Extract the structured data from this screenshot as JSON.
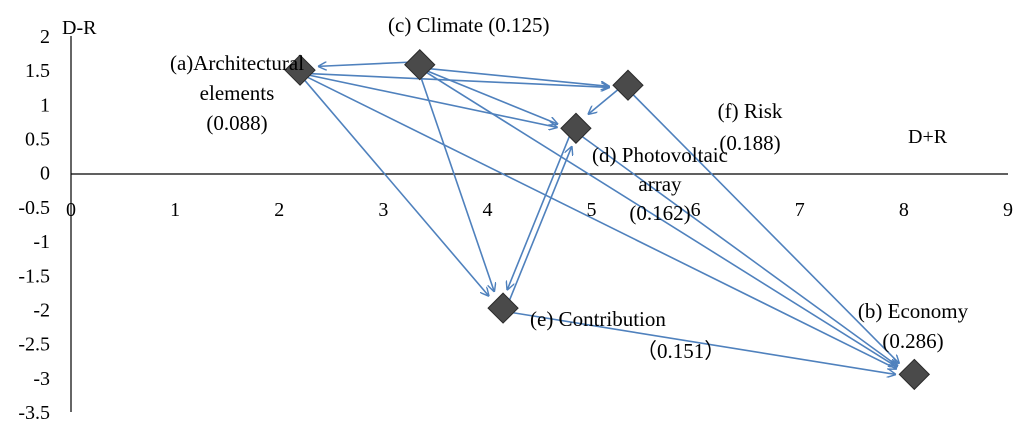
{
  "chart_data": {
    "type": "scatter",
    "xlabel": "D+R",
    "ylabel": "D-R",
    "xlim": [
      0,
      9
    ],
    "ylim": [
      -3.5,
      2
    ],
    "x_ticks": [
      "0",
      "1",
      "2",
      "3",
      "4",
      "5",
      "6",
      "7",
      "8",
      "9"
    ],
    "y_ticks": [
      "2",
      "1.5",
      "1",
      "0.5",
      "0",
      "-0.5",
      "-1",
      "-1.5",
      "-2",
      "-2.5",
      "-3",
      "-3.5"
    ],
    "grid": false,
    "marker": "diamond",
    "colors": {
      "marker": "#4a4a4a",
      "arrow": "#4f81bd",
      "axis": "#000000"
    },
    "points": [
      {
        "id": "a",
        "x": 2.2,
        "y": 1.5,
        "label_lines": [
          "(a)Architectural",
          "elements",
          "(0.088)"
        ]
      },
      {
        "id": "b",
        "x": 8.1,
        "y": -2.95,
        "label_lines": [
          "(b) Economy",
          "(0.286)"
        ]
      },
      {
        "id": "c",
        "x": 3.35,
        "y": 1.58,
        "label_lines": [
          "(c)  Climate (0.125)"
        ]
      },
      {
        "id": "d",
        "x": 4.85,
        "y": 0.65,
        "label_lines": [
          "(d) Photovoltaic",
          "array",
          "(0.162)"
        ]
      },
      {
        "id": "e",
        "x": 4.15,
        "y": -1.98,
        "label_lines": [
          "(e) Contribution",
          "（0.151）"
        ]
      },
      {
        "id": "f",
        "x": 5.35,
        "y": 1.28,
        "label_lines": [
          "(f) Risk",
          "(0.188)"
        ]
      }
    ],
    "arrows": [
      [
        "c",
        "a"
      ],
      [
        "a",
        "f"
      ],
      [
        "a",
        "d"
      ],
      [
        "a",
        "e"
      ],
      [
        "a",
        "b"
      ],
      [
        "c",
        "f"
      ],
      [
        "c",
        "d"
      ],
      [
        "c",
        "e"
      ],
      [
        "c",
        "b"
      ],
      [
        "f",
        "d"
      ],
      [
        "f",
        "b"
      ],
      [
        "d",
        "e"
      ],
      [
        "d",
        "b"
      ],
      [
        "e",
        "d"
      ],
      [
        "e",
        "b"
      ]
    ]
  }
}
